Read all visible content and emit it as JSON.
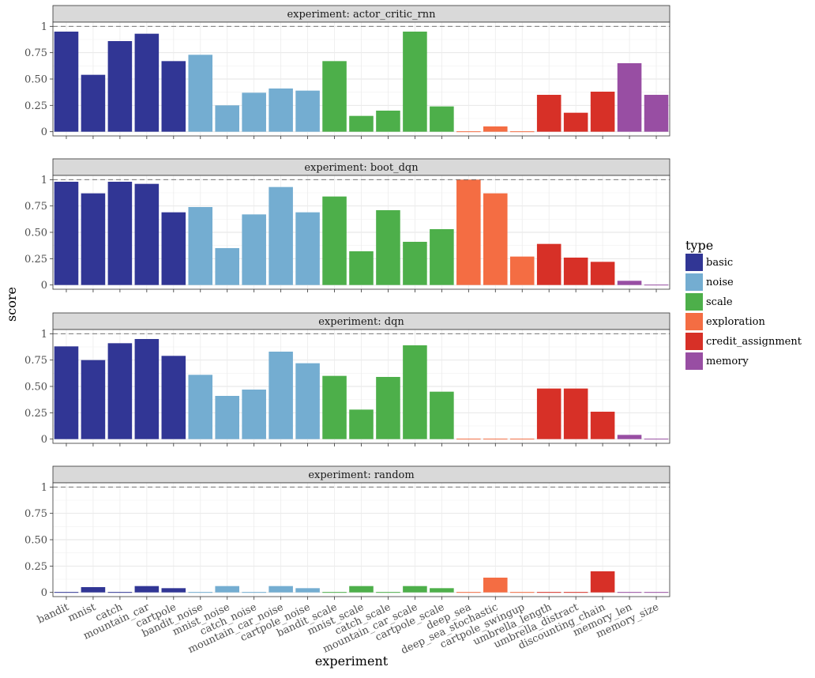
{
  "chart_data": {
    "type": "bar",
    "facet_prefix": "experiment: ",
    "xlabel": "experiment",
    "ylabel": "score",
    "ylim": [
      -0.04,
      1.04
    ],
    "yticks": [
      0,
      0.25,
      0.5,
      0.75,
      1
    ],
    "ytick_labels": [
      "0",
      "0.25",
      "0.50",
      "0.75",
      "1"
    ],
    "reference_line": 1,
    "grid": true,
    "legend_position": "right",
    "legend_title": "type",
    "legend": [
      {
        "label": "basic",
        "color": "#313695"
      },
      {
        "label": "noise",
        "color": "#74add1"
      },
      {
        "label": "scale",
        "color": "#4daf4a"
      },
      {
        "label": "exploration",
        "color": "#f46d43"
      },
      {
        "label": "credit_assignment",
        "color": "#d73027"
      },
      {
        "label": "memory",
        "color": "#984ea3"
      }
    ],
    "categories": [
      "bandit",
      "mnist",
      "catch",
      "mountain_car",
      "cartpole",
      "bandit_noise",
      "mnist_noise",
      "catch_noise",
      "mountain_car_noise",
      "cartpole_noise",
      "bandit_scale",
      "mnist_scale",
      "catch_scale",
      "mountain_car_scale",
      "cartpole_scale",
      "deep_sea",
      "deep_sea_stochastic",
      "cartpole_swingup",
      "umbrella_length",
      "umbrella_distract",
      "discounting_chain",
      "memory_len",
      "memory_size"
    ],
    "category_types": [
      "basic",
      "basic",
      "basic",
      "basic",
      "basic",
      "noise",
      "noise",
      "noise",
      "noise",
      "noise",
      "scale",
      "scale",
      "scale",
      "scale",
      "scale",
      "exploration",
      "exploration",
      "exploration",
      "credit_assignment",
      "credit_assignment",
      "credit_assignment",
      "memory",
      "memory"
    ],
    "panels": [
      {
        "name": "actor_critic_rnn",
        "values": [
          0.95,
          0.54,
          0.86,
          0.93,
          0.67,
          0.73,
          0.25,
          0.37,
          0.41,
          0.39,
          0.67,
          0.15,
          0.2,
          0.95,
          0.24,
          0.0,
          0.05,
          0.0,
          0.35,
          0.18,
          0.38,
          0.65,
          0.35
        ]
      },
      {
        "name": "boot_dqn",
        "values": [
          0.98,
          0.87,
          0.98,
          0.96,
          0.69,
          0.74,
          0.35,
          0.67,
          0.93,
          0.69,
          0.84,
          0.32,
          0.71,
          0.41,
          0.53,
          1.0,
          0.87,
          0.27,
          0.39,
          0.26,
          0.22,
          0.04,
          0.0
        ]
      },
      {
        "name": "dqn",
        "values": [
          0.88,
          0.75,
          0.91,
          0.95,
          0.79,
          0.61,
          0.41,
          0.47,
          0.83,
          0.72,
          0.6,
          0.28,
          0.59,
          0.89,
          0.45,
          0.0,
          0.0,
          0.0,
          0.48,
          0.48,
          0.26,
          0.04,
          0.0
        ]
      },
      {
        "name": "random",
        "values": [
          0.0,
          0.05,
          0.0,
          0.06,
          0.04,
          0.0,
          0.06,
          0.0,
          0.06,
          0.04,
          0.0,
          0.06,
          0.0,
          0.06,
          0.04,
          0.0,
          0.14,
          0.0,
          0.0,
          0.0,
          0.2,
          0.0,
          0.0
        ]
      }
    ]
  }
}
